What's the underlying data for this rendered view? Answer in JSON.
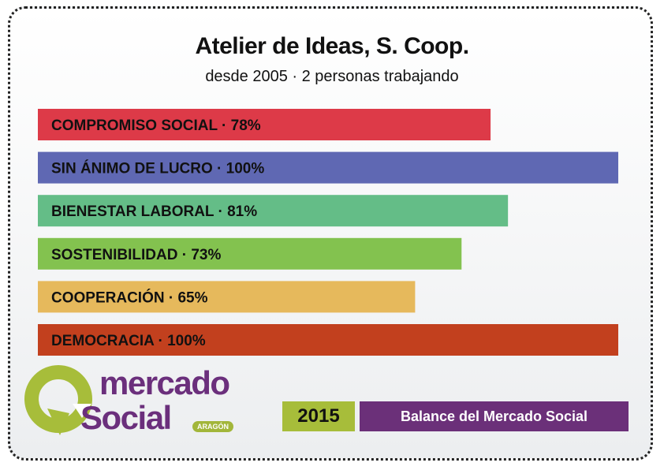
{
  "header": {
    "title": "Atelier de Ideas, S. Coop.",
    "subtitle": "desde 2005 · 2 personas trabajando"
  },
  "chart_data": {
    "type": "bar",
    "orientation": "horizontal",
    "categories": [
      "COMPROMISO SOCIAL",
      "SIN ÁNIMO DE LUCRO",
      "BIENESTAR LABORAL",
      "SOSTENIBILIDAD",
      "COOPERACIÓN",
      "DEMOCRACIA"
    ],
    "values": [
      78,
      100,
      81,
      73,
      65,
      100
    ],
    "labels": [
      "COMPROMISO SOCIAL · 78%",
      "SIN ÁNIMO DE LUCRO · 100%",
      "BIENESTAR LABORAL · 81%",
      "SOSTENIBILIDAD · 73%",
      "COOPERACIÓN · 65%",
      "DEMOCRACIA · 100%"
    ],
    "colors": [
      "#dd3a48",
      "#5f68b3",
      "#64bd87",
      "#83c24f",
      "#e6b95c",
      "#c2401e"
    ],
    "xlim": [
      0,
      100
    ],
    "grid": false,
    "legend": "none"
  },
  "logo": {
    "word1": "mercado",
    "word2": "Social",
    "region": "ARAGÓN",
    "icon": "speech-bubble-arrow-icon"
  },
  "footer": {
    "year": "2015",
    "report_label": "Balance del Mercado Social"
  }
}
